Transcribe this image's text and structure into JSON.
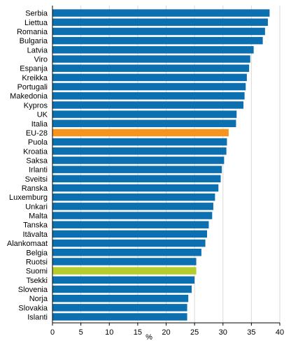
{
  "chart_data": {
    "type": "bar",
    "orientation": "horizontal",
    "xlabel": "%",
    "xlim": [
      0,
      40
    ],
    "xticks": [
      0,
      5,
      10,
      15,
      20,
      25,
      30,
      35,
      40
    ],
    "grid": "vertical",
    "legend": "none",
    "colors": {
      "default": "#0b6fb0",
      "highlight_eu": "#f7941d",
      "highlight_finland": "#b5cc2e",
      "grid": "#d9d9d9",
      "axis": "#000000"
    },
    "categories": [
      "Serbia",
      "Liettua",
      "Romania",
      "Bulgaria",
      "Latvia",
      "Viro",
      "Espanja",
      "Kreikka",
      "Portugali",
      "Makedonia",
      "Kypros",
      "UK",
      "Italia",
      "EU-28",
      "Puola",
      "Kroatia",
      "Saksa",
      "Irlanti",
      "Sveitsi",
      "Ranska",
      "Luxemburg",
      "Unkari",
      "Malta",
      "Tanska",
      "Itävalta",
      "Alankomaat",
      "Belgia",
      "Ruotsi",
      "Suomi",
      "Tsekki",
      "Slovenia",
      "Norja",
      "Slovakia",
      "Islanti"
    ],
    "values": [
      38.2,
      37.9,
      37.4,
      37.0,
      35.4,
      34.8,
      34.6,
      34.2,
      34.0,
      33.8,
      33.6,
      32.4,
      32.3,
      31.0,
      30.7,
      30.6,
      30.2,
      29.8,
      29.6,
      29.2,
      28.6,
      28.3,
      28.1,
      27.5,
      27.2,
      26.9,
      26.2,
      25.3,
      25.3,
      25.0,
      24.5,
      23.9,
      23.7,
      23.7
    ],
    "highlight": {
      "EU-28": "highlight_eu",
      "Suomi": "highlight_finland"
    }
  }
}
